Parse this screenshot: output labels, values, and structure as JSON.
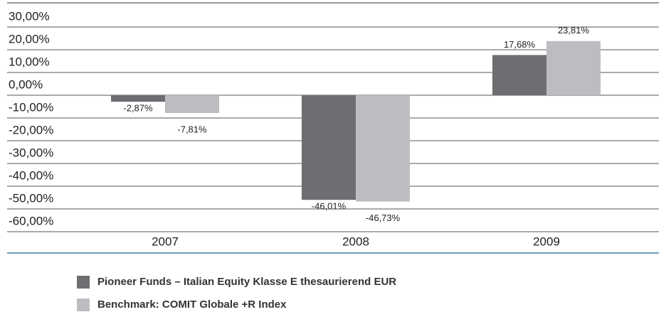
{
  "chart_data": {
    "type": "bar",
    "categories": [
      "2007",
      "2008",
      "2009"
    ],
    "series": [
      {
        "name": "Pioneer Funds – Italian Equity Klasse E thesaurierend EUR",
        "color": "#6d6e71",
        "values": [
          -2.87,
          -46.01,
          17.68
        ],
        "value_labels": [
          "-2,87%",
          "-46,01%",
          "17,68%"
        ]
      },
      {
        "name": "Benchmark: COMIT Globale +R Index",
        "color": "#bcbdc0",
        "values": [
          -7.81,
          -46.73,
          23.81
        ],
        "value_labels": [
          "-7,81%",
          "-46,73%",
          "23,81%"
        ]
      }
    ],
    "ylim": [
      -60,
      30
    ],
    "yticks": [
      {
        "value": 30,
        "label": "30,00%"
      },
      {
        "value": 20,
        "label": "20,00%"
      },
      {
        "value": 10,
        "label": "10,00%"
      },
      {
        "value": 0,
        "label": "0,00%"
      },
      {
        "value": -10,
        "label": "-10,00%"
      },
      {
        "value": -20,
        "label": "-20,00%"
      },
      {
        "value": -30,
        "label": "-30,00%"
      },
      {
        "value": -40,
        "label": "-40,00%"
      },
      {
        "value": -50,
        "label": "-50,00%"
      },
      {
        "value": -60,
        "label": "-60,00%"
      }
    ],
    "grid": true
  }
}
